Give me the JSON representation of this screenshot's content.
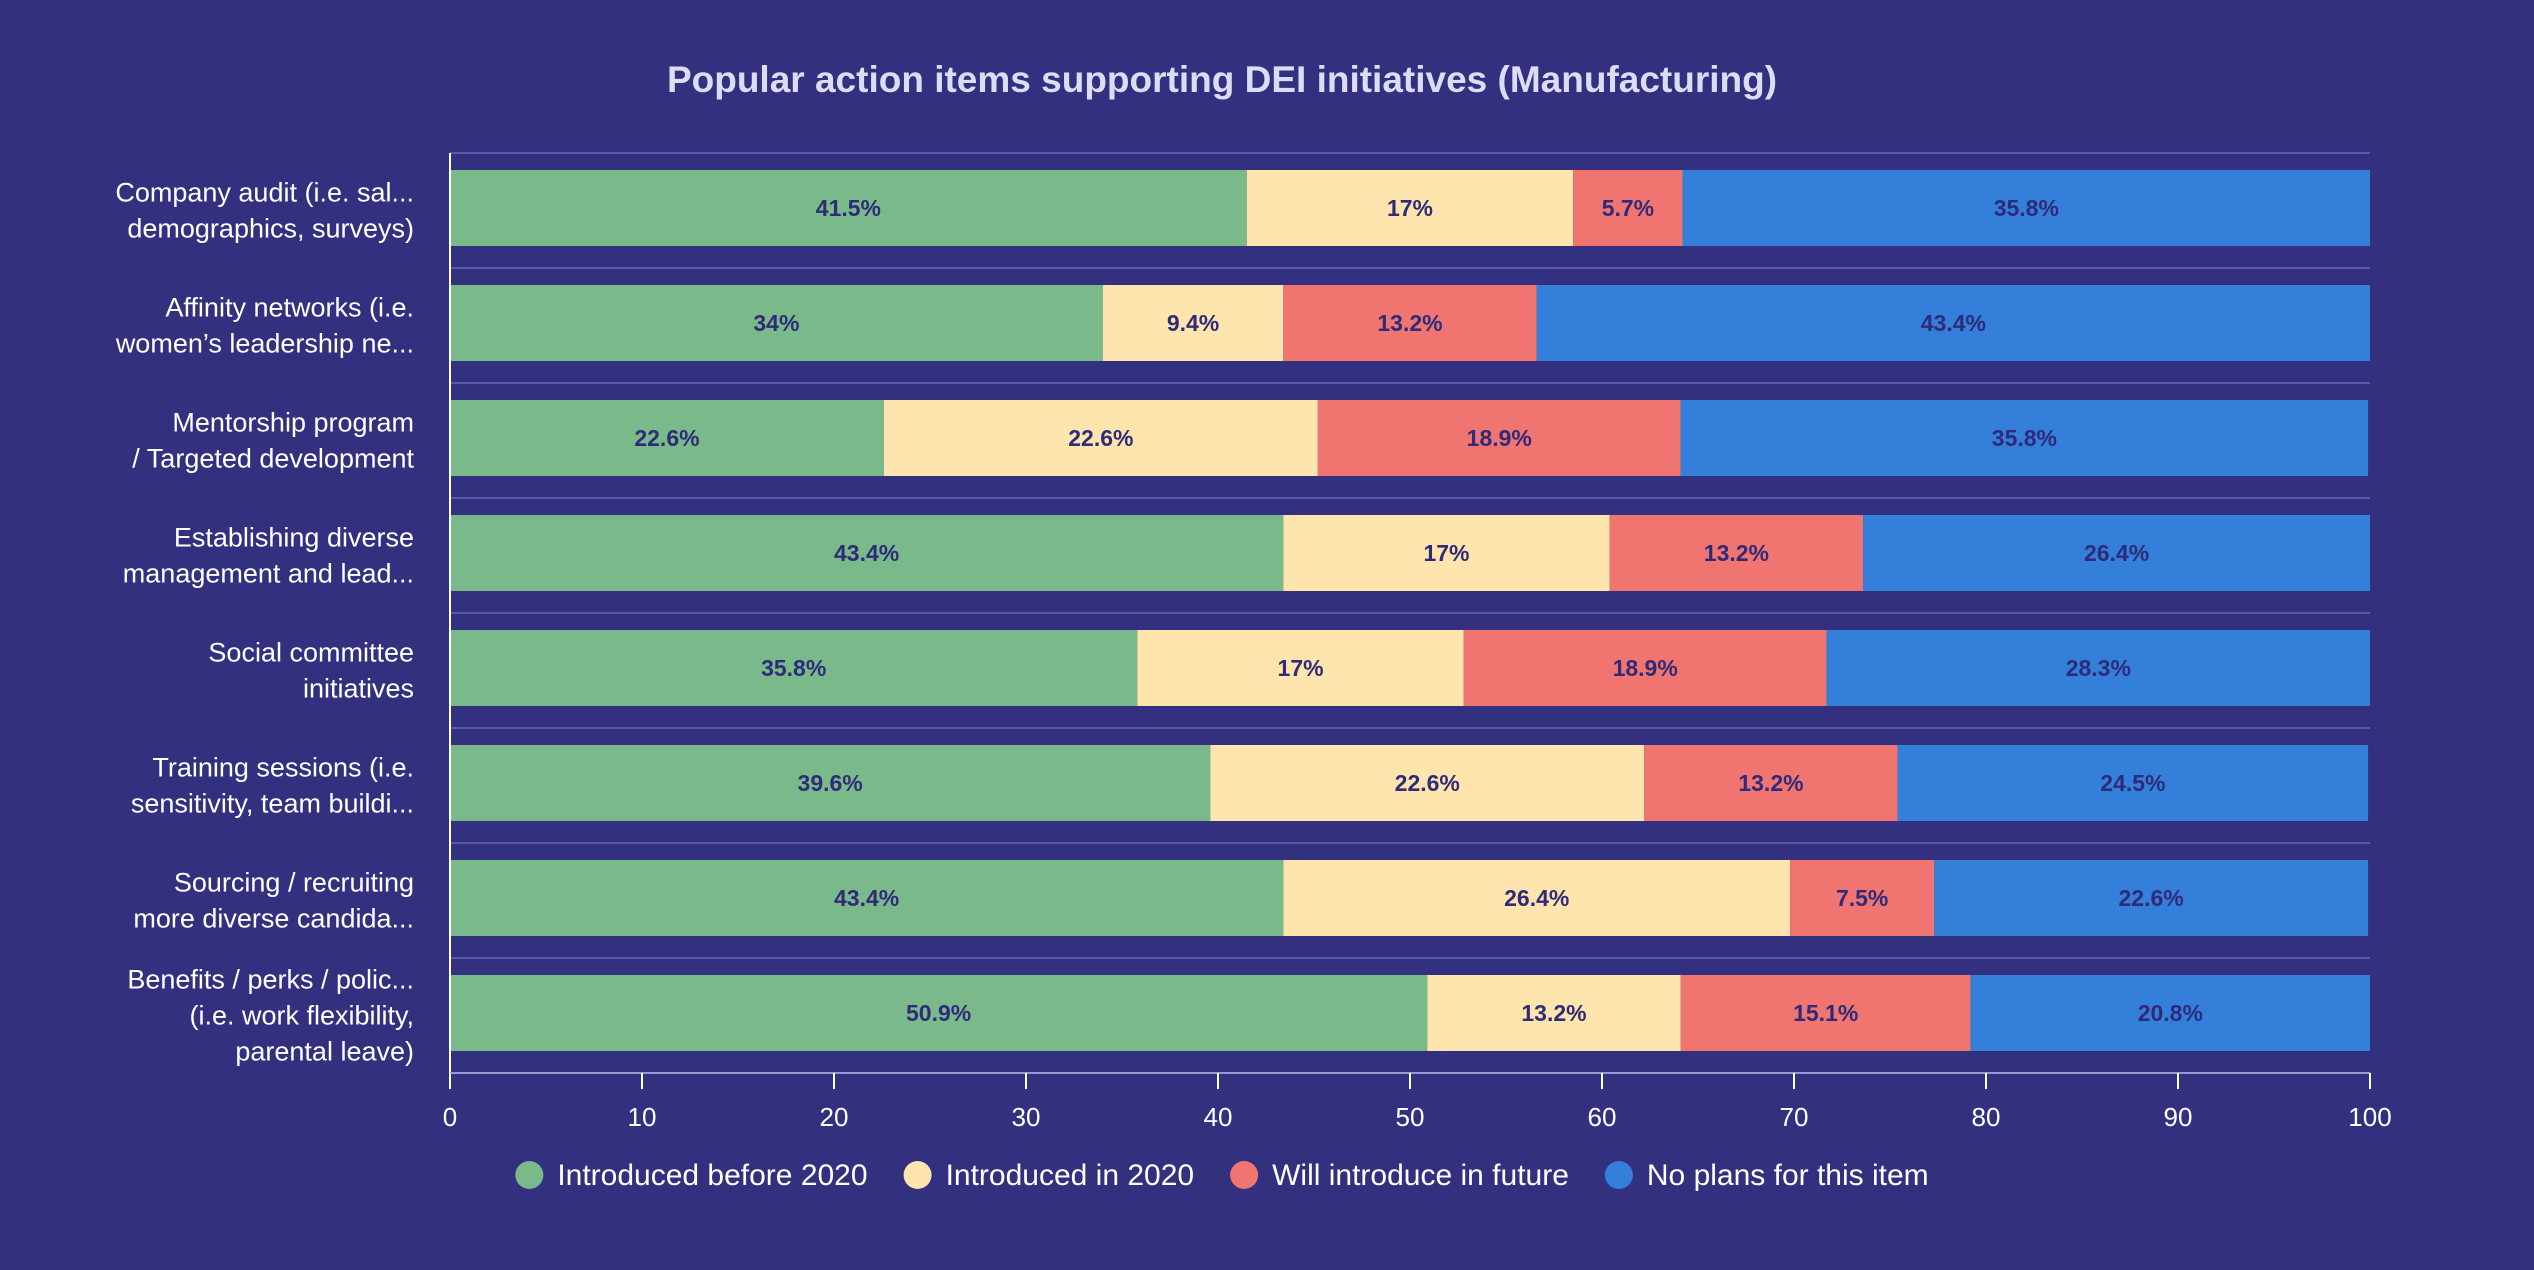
{
  "chart_data": {
    "type": "bar",
    "orientation": "horizontal",
    "stacked": true,
    "title": "Popular action items supporting DEI initiatives (Manufacturing)",
    "categories": [
      [
        "Company audit (i.e. sal...",
        "demographics, surveys)"
      ],
      [
        "Affinity networks (i.e.",
        "women’s leadership ne..."
      ],
      [
        "Mentorship program",
        "/ Targeted development"
      ],
      [
        "Establishing diverse",
        "management and lead..."
      ],
      [
        "Social committee",
        "initiatives"
      ],
      [
        "Training sessions (i.e.",
        "sensitivity, team buildi..."
      ],
      [
        "Sourcing / recruiting",
        "more diverse candida..."
      ],
      [
        "Benefits / perks / polic...",
        "(i.e. work flexibility,",
        "parental leave)"
      ]
    ],
    "series": [
      {
        "name": "Introduced before 2020",
        "color": "#7aba8a",
        "values": [
          41.5,
          34,
          22.6,
          43.4,
          35.8,
          39.6,
          43.4,
          50.9
        ]
      },
      {
        "name": "Introduced in 2020",
        "color": "#fee4ad",
        "values": [
          17,
          9.4,
          22.6,
          17,
          17,
          22.6,
          26.4,
          13.2
        ]
      },
      {
        "name": "Will introduce in future",
        "color": "#f07571",
        "values": [
          5.7,
          13.2,
          18.9,
          13.2,
          18.9,
          13.2,
          7.5,
          15.1
        ]
      },
      {
        "name": "No plans for this item",
        "color": "#347fda",
        "values": [
          35.8,
          43.4,
          35.8,
          26.4,
          28.3,
          24.5,
          22.6,
          20.8
        ]
      }
    ],
    "data_label_suffix": "%",
    "xlim": [
      0,
      100
    ],
    "xticks": [
      0,
      10,
      20,
      30,
      40,
      50,
      60,
      70,
      80,
      90,
      100
    ],
    "grid": true,
    "legend": "bottom"
  }
}
